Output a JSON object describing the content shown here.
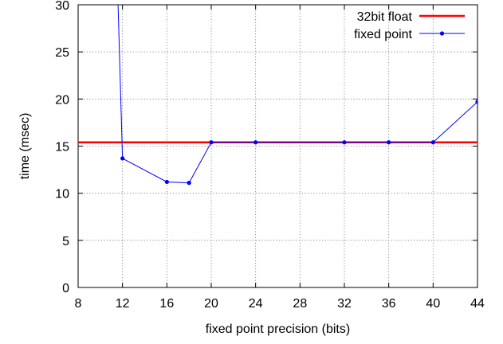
{
  "chart_data": {
    "type": "line",
    "title": "",
    "xlabel": "fixed point precision (bits)",
    "ylabel": "time (msec)",
    "xlim": [
      8,
      44
    ],
    "ylim": [
      0,
      30
    ],
    "xticks": [
      8,
      12,
      16,
      20,
      24,
      28,
      32,
      36,
      40,
      44
    ],
    "yticks": [
      0,
      5,
      10,
      15,
      20,
      25,
      30
    ],
    "grid": true,
    "legend_position": "top-right",
    "series": [
      {
        "name": "32bit float",
        "color": "#ff0000",
        "style": "line",
        "x": [
          8,
          44
        ],
        "y": [
          15.4,
          15.4
        ]
      },
      {
        "name": "fixed point",
        "color": "#0000ff",
        "style": "line-points",
        "x": [
          11.6,
          12,
          16,
          18,
          20,
          24,
          32,
          36,
          40,
          44
        ],
        "y": [
          30,
          13.7,
          11.2,
          11.1,
          15.4,
          15.4,
          15.4,
          15.4,
          15.4,
          19.7
        ]
      }
    ]
  }
}
